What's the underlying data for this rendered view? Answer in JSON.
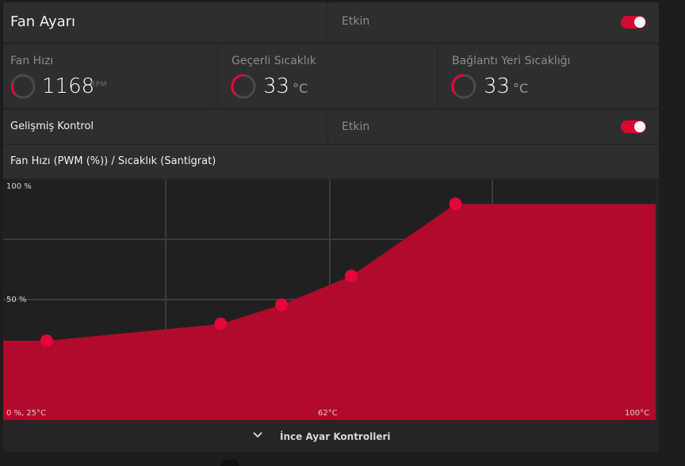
{
  "header": {
    "title": "Fan Ayarı",
    "enabled_label": "Etkin",
    "enabled": true
  },
  "stats": [
    {
      "label": "Fan Hızı",
      "value": "1168",
      "unit": "RPM"
    },
    {
      "label": "Geçerli Sıcaklık",
      "value": "33",
      "unit": "°C"
    },
    {
      "label": "Bağlantı Yeri Sıcaklığı",
      "value": "33",
      "unit": "°C"
    }
  ],
  "advanced": {
    "title": "Gelişmiş Kontrol",
    "enabled_label": "Etkin",
    "enabled": true
  },
  "chart_header": {
    "title": "Fan Hızı (PWM (%)) / Sıcaklık (Santigrat)"
  },
  "chart_data": {
    "type": "area",
    "xlim": [
      25,
      100
    ],
    "ylim": [
      0,
      100
    ],
    "x_tick_labels": [
      "0 %, 25°C",
      "62°C",
      "100°C"
    ],
    "y_tick_labels": [
      "100 %",
      "50 %"
    ],
    "accent_color": "#b00a2c",
    "point_color": "#e5063a",
    "curve": [
      {
        "x": 25,
        "y": 33
      },
      {
        "x": 30,
        "y": 33
      },
      {
        "x": 50,
        "y": 40
      },
      {
        "x": 57,
        "y": 48
      },
      {
        "x": 65,
        "y": 60
      },
      {
        "x": 77,
        "y": 90
      },
      {
        "x": 100,
        "y": 90
      }
    ],
    "control_points": [
      {
        "x": 30,
        "y": 33
      },
      {
        "x": 50,
        "y": 40
      },
      {
        "x": 57,
        "y": 48
      },
      {
        "x": 65,
        "y": 60
      },
      {
        "x": 77,
        "y": 90
      }
    ]
  },
  "footer": {
    "label": "İnce Ayar Kontrolleri",
    "icon": "chevron-down-icon"
  }
}
